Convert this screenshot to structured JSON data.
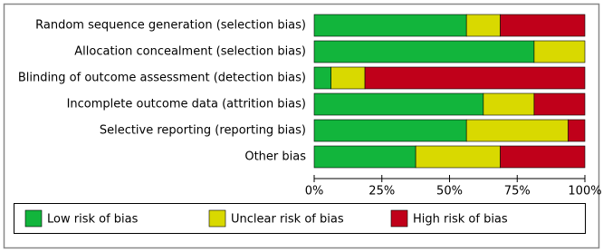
{
  "chart_data": {
    "type": "stacked-bar-horizontal",
    "categories": [
      "Random sequence generation (selection bias)",
      "Allocation concealment (selection bias)",
      "Blinding of outcome assessment (detection bias)",
      "Incomplete outcome data (attrition bias)",
      "Selective reporting (reporting bias)",
      "Other bias"
    ],
    "series": [
      {
        "name": "Low risk of bias",
        "color": "#12b53c",
        "values": [
          56.25,
          81.25,
          6.25,
          62.5,
          56.25,
          37.5
        ]
      },
      {
        "name": "Unclear risk of bias",
        "color": "#d9d900",
        "values": [
          12.5,
          18.75,
          12.5,
          18.75,
          37.5,
          31.25
        ]
      },
      {
        "name": "High risk of bias",
        "color": "#c0001a",
        "values": [
          31.25,
          0,
          81.25,
          18.75,
          6.25,
          31.25
        ]
      }
    ],
    "xlim": [
      0,
      100
    ],
    "xticks": [
      {
        "value": 0,
        "label": "0%"
      },
      {
        "value": 25,
        "label": "25%"
      },
      {
        "value": 50,
        "label": "50%"
      },
      {
        "value": 75,
        "label": "75%"
      },
      {
        "value": 100,
        "label": "100%"
      }
    ]
  }
}
